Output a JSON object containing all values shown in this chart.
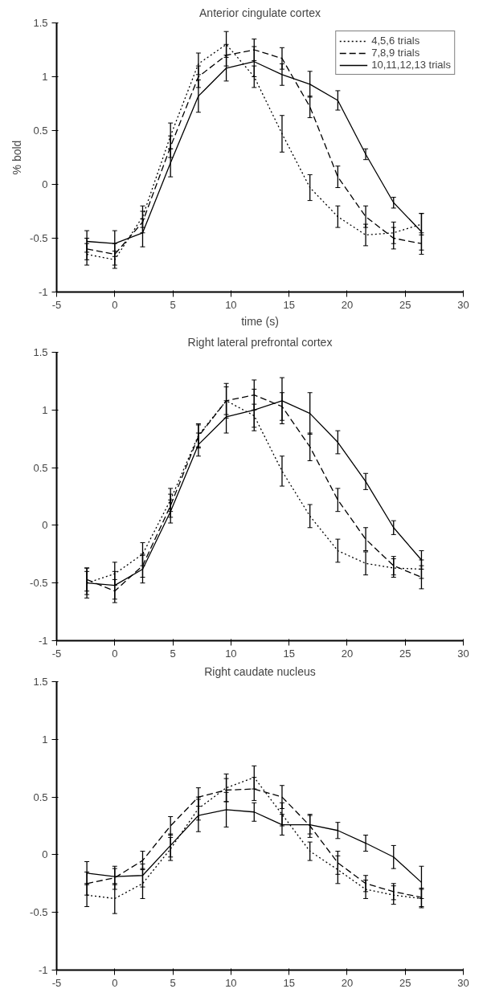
{
  "chart_data": [
    {
      "type": "line",
      "title": "Anterior cingulate cortex",
      "ylabel": "% bold",
      "xlabel": "time (s)",
      "xlim": [
        -5,
        30
      ],
      "ylim": [
        -1,
        1.5
      ],
      "xticks": [
        -5,
        0,
        5,
        10,
        15,
        20,
        25,
        30
      ],
      "yticks": [
        -1,
        -0.5,
        0,
        0.5,
        1,
        1.5
      ],
      "grid": false,
      "legend": "top right",
      "x": [
        -2.4,
        0,
        2.4,
        4.8,
        7.2,
        9.6,
        12,
        14.4,
        16.8,
        19.2,
        21.6,
        24,
        26.4
      ],
      "series": [
        {
          "name": "4,5,6 trials",
          "color": "#000000",
          "line_style": "dotted",
          "values": [
            -0.65,
            -0.7,
            -0.3,
            0.45,
            1.12,
            1.3,
            1.0,
            0.47,
            -0.03,
            -0.3,
            -0.47,
            -0.45,
            -0.37
          ],
          "errors": [
            0.1,
            0.08,
            0.1,
            0.12,
            0.1,
            0.12,
            0.1,
            0.17,
            0.12,
            0.1,
            0.1,
            0.1,
            0.1
          ]
        },
        {
          "name": "7,8,9 trials",
          "color": "#000000",
          "line_style": "dashed",
          "values": [
            -0.6,
            -0.65,
            -0.35,
            0.35,
            1.0,
            1.2,
            1.25,
            1.17,
            0.72,
            0.07,
            -0.3,
            -0.5,
            -0.55
          ],
          "errors": [
            0.1,
            0.1,
            0.1,
            0.1,
            0.1,
            0.1,
            0.1,
            0.1,
            0.1,
            0.1,
            0.1,
            0.1,
            0.1
          ]
        },
        {
          "name": "10,11,12,13 trials",
          "color": "#000000",
          "line_style": "solid",
          "values": [
            -0.53,
            -0.55,
            -0.45,
            0.2,
            0.82,
            1.08,
            1.14,
            1.02,
            0.93,
            0.78,
            0.28,
            -0.17,
            -0.44
          ],
          "errors": [
            0.1,
            0.12,
            0.13,
            0.13,
            0.15,
            0.12,
            0.14,
            0.1,
            0.12,
            0.09,
            0.05,
            0.05,
            0.17
          ]
        }
      ]
    },
    {
      "type": "line",
      "title": "Right lateral prefrontal cortex",
      "xlim": [
        -5,
        30
      ],
      "ylim": [
        -1,
        1.5
      ],
      "xticks": [
        -5,
        0,
        5,
        10,
        15,
        20,
        25,
        30
      ],
      "yticks": [
        -1,
        -0.5,
        0,
        0.5,
        1,
        1.5
      ],
      "grid": false,
      "x": [
        -2.4,
        0,
        2.4,
        4.8,
        7.2,
        9.6,
        12,
        14.4,
        16.8,
        19.2,
        21.6,
        24,
        26.4
      ],
      "series": [
        {
          "color": "#000000",
          "line_style": "dotted",
          "values": [
            -0.5,
            -0.42,
            -0.25,
            0.22,
            0.78,
            1.08,
            0.95,
            0.47,
            0.08,
            -0.22,
            -0.33,
            -0.37,
            -0.38
          ],
          "errors": [
            0.1,
            0.1,
            0.1,
            0.1,
            0.1,
            0.15,
            0.1,
            0.13,
            0.1,
            0.1,
            0.1,
            0.08,
            0.08
          ]
        },
        {
          "color": "#000000",
          "line_style": "dashed",
          "values": [
            -0.47,
            -0.57,
            -0.35,
            0.17,
            0.77,
            1.08,
            1.13,
            1.03,
            0.68,
            0.22,
            -0.12,
            -0.35,
            -0.45
          ],
          "errors": [
            0.1,
            0.1,
            0.1,
            0.1,
            0.1,
            0.12,
            0.13,
            0.12,
            0.12,
            0.1,
            0.1,
            0.08,
            0.1
          ]
        },
        {
          "color": "#000000",
          "line_style": "solid",
          "values": [
            -0.5,
            -0.52,
            -0.38,
            0.12,
            0.7,
            0.94,
            1.0,
            1.08,
            0.97,
            0.72,
            0.38,
            -0.02,
            -0.3
          ],
          "errors": [
            0.13,
            0.12,
            0.12,
            0.1,
            0.1,
            0.14,
            0.18,
            0.2,
            0.18,
            0.1,
            0.07,
            0.06,
            0.08
          ]
        }
      ]
    },
    {
      "type": "line",
      "title": "Right caudate nucleus",
      "xlim": [
        -5,
        30
      ],
      "ylim": [
        -1,
        1.5
      ],
      "xticks": [
        -5,
        0,
        5,
        10,
        15,
        20,
        25,
        30
      ],
      "yticks": [
        -1,
        -0.5,
        0,
        0.5,
        1,
        1.5
      ],
      "grid": false,
      "x": [
        -2.4,
        0,
        2.4,
        4.8,
        7.2,
        9.6,
        12,
        14.4,
        16.8,
        19.2,
        21.6,
        24,
        26.4
      ],
      "series": [
        {
          "color": "#000000",
          "line_style": "dotted",
          "values": [
            -0.35,
            -0.38,
            -0.25,
            0.05,
            0.4,
            0.58,
            0.67,
            0.35,
            0.03,
            -0.13,
            -0.3,
            -0.35,
            -0.38
          ],
          "errors": [
            0.1,
            0.13,
            0.13,
            0.1,
            0.1,
            0.12,
            0.1,
            0.1,
            0.08,
            0.12,
            0.08,
            0.08,
            0.08
          ]
        },
        {
          "color": "#000000",
          "line_style": "dashed",
          "values": [
            -0.25,
            -0.2,
            -0.05,
            0.25,
            0.5,
            0.56,
            0.57,
            0.5,
            0.25,
            -0.07,
            -0.25,
            -0.32,
            -0.37
          ],
          "errors": [
            0.1,
            0.1,
            0.08,
            0.08,
            0.08,
            0.1,
            0.1,
            0.1,
            0.1,
            0.1,
            0.07,
            0.07,
            0.08
          ]
        },
        {
          "color": "#000000",
          "line_style": "solid",
          "values": [
            -0.16,
            -0.19,
            -0.18,
            0.08,
            0.34,
            0.39,
            0.37,
            0.26,
            0.26,
            0.21,
            0.1,
            -0.02,
            -0.24
          ],
          "errors": [
            0.1,
            0.07,
            0.1,
            0.1,
            0.14,
            0.15,
            0.08,
            0.09,
            0.08,
            0.07,
            0.07,
            0.1,
            0.14
          ]
        }
      ]
    }
  ]
}
